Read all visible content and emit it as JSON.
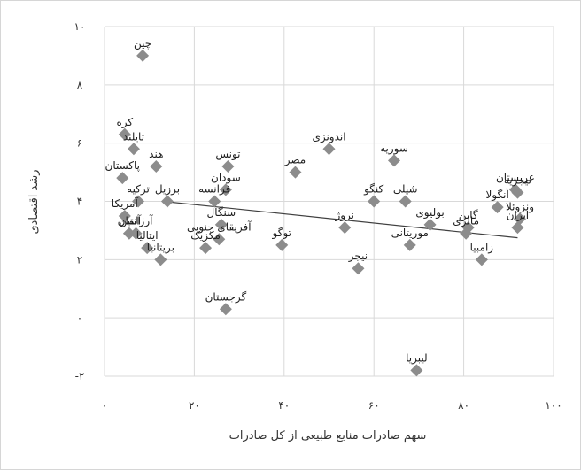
{
  "chart_data": {
    "type": "scatter",
    "title": "",
    "xlabel": "سهم صادرات منابع طبیعی از کل صادرات",
    "ylabel": "رشد اقتصادی",
    "xlim": [
      0,
      100
    ],
    "ylim": [
      -2,
      10
    ],
    "x_ticks": [
      0,
      20,
      40,
      60,
      80,
      100
    ],
    "x_tick_labels": [
      "۰",
      "۲۰",
      "۴۰",
      "۶۰",
      "۸۰",
      "۱۰۰"
    ],
    "y_ticks": [
      -2,
      0,
      2,
      4,
      6,
      8,
      10
    ],
    "y_tick_labels": [
      "-۲",
      "۰",
      "۲",
      "۴",
      "۶",
      "۸",
      "۱۰"
    ],
    "grid": true,
    "marker": "diamond",
    "marker_color": "#8c8c8c",
    "trendline": {
      "x": [
        13,
        92
      ],
      "y": [
        4.0,
        2.75
      ],
      "color": "#404040"
    },
    "points": [
      {
        "label": "چین",
        "x": 8.5,
        "y": 9.0
      },
      {
        "label": "کره",
        "x": 4.5,
        "y": 6.3
      },
      {
        "label": "تایلند",
        "x": 6.5,
        "y": 5.8
      },
      {
        "label": "هند",
        "x": 11.5,
        "y": 5.2
      },
      {
        "label": "پاکستان",
        "x": 4.0,
        "y": 4.8
      },
      {
        "label": "برزیل",
        "x": 14.0,
        "y": 4.0
      },
      {
        "label": "ترکیه",
        "x": 7.5,
        "y": 4.0
      },
      {
        "label": "آمریکا",
        "x": 4.5,
        "y": 3.5
      },
      {
        "label": "آلمان",
        "x": 5.5,
        "y": 2.9
      },
      {
        "label": "آرژانتین",
        "x": 7.0,
        "y": 2.9
      },
      {
        "label": "ایتالیا",
        "x": 9.5,
        "y": 2.4
      },
      {
        "label": "بریتانیا",
        "x": 12.5,
        "y": 2.0
      },
      {
        "label": "تونس",
        "x": 27.5,
        "y": 5.2
      },
      {
        "label": "سودان",
        "x": 27.0,
        "y": 4.4
      },
      {
        "label": "فرانسه",
        "x": 24.5,
        "y": 4.0
      },
      {
        "label": "سنگال",
        "x": 26.0,
        "y": 3.2
      },
      {
        "label": "آفریقای جنوبی",
        "x": 25.5,
        "y": 2.7
      },
      {
        "label": "مکزیک",
        "x": 22.5,
        "y": 2.4
      },
      {
        "label": "گرجستان",
        "x": 27.0,
        "y": 0.3
      },
      {
        "label": "توگو",
        "x": 39.5,
        "y": 2.5
      },
      {
        "label": "مصر",
        "x": 42.5,
        "y": 5.0
      },
      {
        "label": "اندونزی",
        "x": 50.0,
        "y": 5.8
      },
      {
        "label": "نروژ",
        "x": 53.5,
        "y": 3.1
      },
      {
        "label": "نیجر",
        "x": 56.5,
        "y": 1.7
      },
      {
        "label": "کنگو",
        "x": 60.0,
        "y": 4.0
      },
      {
        "label": "سوریه",
        "x": 64.5,
        "y": 5.4
      },
      {
        "label": "شیلی",
        "x": 67.0,
        "y": 4.0
      },
      {
        "label": "بولیوی",
        "x": 72.5,
        "y": 3.2
      },
      {
        "label": "موریتانی",
        "x": 68.0,
        "y": 2.5
      },
      {
        "label": "لیبریا",
        "x": 69.5,
        "y": -1.8
      },
      {
        "label": "گابن",
        "x": 81.0,
        "y": 3.1
      },
      {
        "label": "زامبیا",
        "x": 84.0,
        "y": 2.0
      },
      {
        "label": "عربستان",
        "x": 91.5,
        "y": 4.4
      },
      {
        "label": "نیجریه",
        "x": 92.0,
        "y": 4.3
      },
      {
        "label": "ونزوئلا",
        "x": 92.5,
        "y": 3.4
      },
      {
        "label": "ایران",
        "x": 92.0,
        "y": 3.1
      },
      {
        "label": "آنگولا",
        "x": 87.5,
        "y": 3.8
      },
      {
        "label": "مالزی",
        "x": 80.5,
        "y": 2.9
      }
    ]
  }
}
